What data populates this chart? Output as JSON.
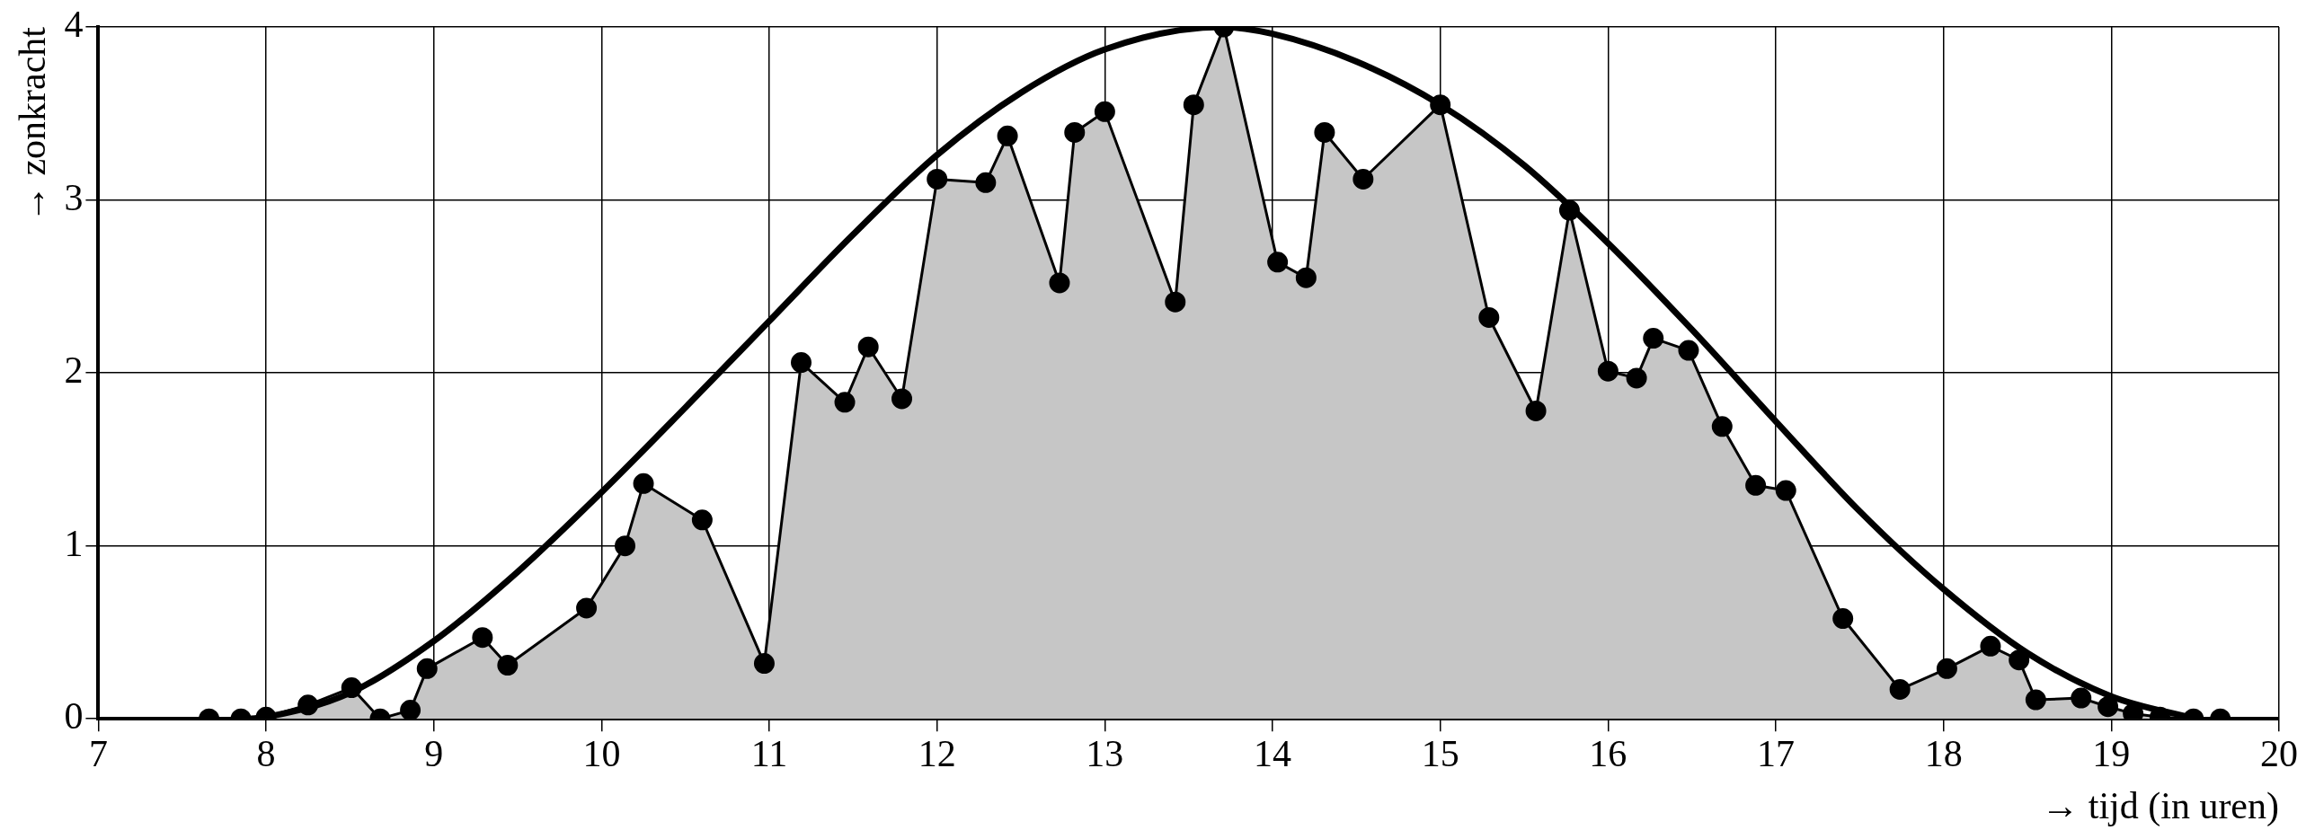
{
  "chart_data": {
    "type": "area",
    "xlabel": "→ tijd (in uren)",
    "ylabel": "→ zonkracht",
    "xlim": [
      7,
      20
    ],
    "xticks": [
      7,
      8,
      9,
      10,
      11,
      12,
      13,
      14,
      15,
      16,
      17,
      18,
      19,
      20
    ],
    "ylim": [
      0,
      4
    ],
    "yticks": [
      0,
      1,
      2,
      3,
      4
    ],
    "grid": true,
    "legend": false,
    "series": [
      {
        "type": "area",
        "color": "#c6c6c6",
        "marker": "circle",
        "x": [
          7.66,
          7.85,
          8.0,
          8.25,
          8.51,
          8.68,
          8.86,
          8.96,
          9.29,
          9.44,
          9.91,
          10.14,
          10.25,
          10.6,
          10.97,
          11.19,
          11.45,
          11.59,
          11.79,
          12.0,
          12.29,
          12.42,
          12.73,
          12.82,
          13.0,
          13.42,
          13.53,
          13.71,
          14.03,
          14.2,
          14.31,
          14.54,
          15.0,
          15.29,
          15.57,
          15.77,
          16.0,
          16.17,
          16.27,
          16.48,
          16.68,
          16.88,
          17.06,
          17.4,
          17.74,
          18.02,
          18.28,
          18.45,
          18.55,
          18.82,
          18.98,
          19.13,
          19.29,
          19.49,
          19.65
        ],
        "values": [
          0,
          0,
          0.01,
          0.08,
          0.18,
          0,
          0.05,
          0.29,
          0.47,
          0.31,
          0.64,
          1.0,
          1.36,
          1.15,
          0.32,
          2.06,
          1.83,
          2.15,
          1.85,
          3.12,
          3.1,
          3.37,
          2.52,
          3.39,
          3.51,
          2.41,
          3.55,
          4.0,
          2.64,
          2.55,
          3.39,
          3.12,
          3.55,
          2.32,
          1.78,
          2.94,
          2.01,
          1.97,
          2.2,
          2.13,
          1.69,
          1.35,
          1.32,
          0.58,
          0.17,
          0.29,
          0.42,
          0.34,
          0.11,
          0.12,
          0.07,
          0.03,
          0.01,
          0,
          0
        ]
      },
      {
        "type": "line",
        "color": "#000000",
        "marker": "none",
        "x": [
          7.9,
          8.0,
          8.5,
          9.0,
          9.5,
          10.0,
          10.5,
          11.0,
          11.5,
          12.0,
          12.5,
          13.0,
          13.7,
          14.0,
          14.5,
          15.0,
          15.5,
          16.0,
          16.5,
          17.0,
          17.5,
          18.0,
          18.5,
          19.0,
          19.5
        ],
        "values": [
          0,
          0.01,
          0.15,
          0.45,
          0.85,
          1.31,
          1.8,
          2.3,
          2.8,
          3.26,
          3.62,
          3.87,
          4.0,
          3.96,
          3.8,
          3.55,
          3.2,
          2.75,
          2.25,
          1.72,
          1.2,
          0.75,
          0.38,
          0.13,
          0
        ]
      }
    ]
  }
}
